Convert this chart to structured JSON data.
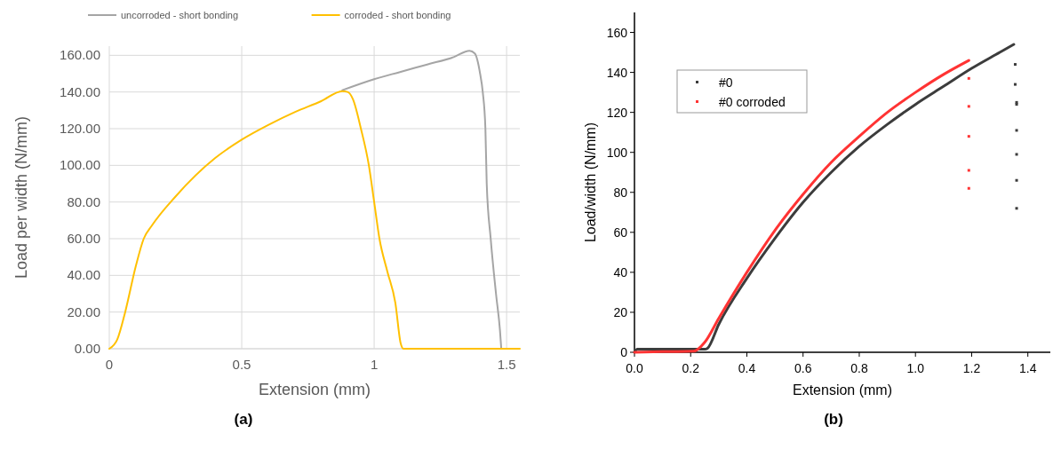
{
  "chart_data": [
    {
      "type": "line",
      "xlabel": "Extension (mm)",
      "ylabel": "Load per width (N/mm)",
      "annotations": [
        "(a)"
      ],
      "xlim": [
        0,
        1.55
      ],
      "xticks": [
        0,
        0.5,
        1,
        1.5
      ],
      "ylim": [
        0,
        165
      ],
      "yticks": [
        {
          "value": 0,
          "label": "0.00"
        },
        {
          "value": 20,
          "label": "20.00"
        },
        {
          "value": 40,
          "label": "40.00"
        },
        {
          "value": 60,
          "label": "60.00"
        },
        {
          "value": 80,
          "label": "80.00"
        },
        {
          "value": 100,
          "label": "100.00"
        },
        {
          "value": 120,
          "label": "120.00"
        },
        {
          "value": 140,
          "label": "140.00"
        },
        {
          "value": 160,
          "label": "160.00"
        }
      ],
      "grid": true,
      "legend": "top",
      "line_style": "solid",
      "series": [
        {
          "name": "uncorroded - short bonding",
          "color": "#a5a5a5",
          "x": [
            0.88,
            1.0,
            1.1,
            1.2,
            1.3,
            1.36,
            1.38,
            1.4,
            1.41,
            1.42,
            1.425,
            1.44,
            1.46,
            1.475,
            1.48
          ],
          "values": [
            141,
            147,
            151,
            155,
            159,
            162.5,
            161,
            150,
            140,
            120,
            90,
            60,
            30,
            10,
            0
          ]
        },
        {
          "name": "corroded - short bonding",
          "color": "#ffc000",
          "x": [
            0,
            0.03,
            0.06,
            0.1,
            0.13,
            0.16,
            0.25,
            0.4,
            0.5,
            0.6,
            0.7,
            0.8,
            0.88,
            0.9,
            0.92,
            0.95,
            0.98,
            1.0,
            1.02,
            1.05,
            1.08,
            1.1,
            1.11,
            1.55
          ],
          "values": [
            0,
            5,
            20,
            45,
            60,
            67,
            83,
            104,
            114,
            122,
            129,
            135,
            140.5,
            140,
            136,
            120,
            100,
            80,
            60,
            42,
            25,
            3,
            0,
            0
          ]
        }
      ]
    },
    {
      "type": "line",
      "xlabel": "Extension (mm)",
      "ylabel": "Load/width (N/mm)",
      "annotations": [
        "(b)"
      ],
      "xlim": [
        0,
        1.48
      ],
      "xticks": [
        {
          "value": 0,
          "label": "0.0"
        },
        {
          "value": 0.2,
          "label": "0.2"
        },
        {
          "value": 0.4,
          "label": "0.4"
        },
        {
          "value": 0.6,
          "label": "0.6"
        },
        {
          "value": 0.8,
          "label": "0.8"
        },
        {
          "value": 1,
          "label": "1.0"
        },
        {
          "value": 1.2,
          "label": "1.2"
        },
        {
          "value": 1.4,
          "label": "1.4"
        }
      ],
      "ylim": [
        0,
        170
      ],
      "yticks": [
        0,
        20,
        40,
        60,
        80,
        100,
        120,
        140,
        160
      ],
      "grid": false,
      "legend": "top left",
      "line_style": "solid",
      "series": [
        {
          "name": "#0",
          "color": "#3c3c3c",
          "x": [
            0,
            0.01,
            0.1,
            0.2,
            0.25,
            0.26,
            0.3,
            0.4,
            0.5,
            0.6,
            0.7,
            0.8,
            0.9,
            1.0,
            1.1,
            1.2,
            1.3,
            1.35
          ],
          "values": [
            0,
            1.5,
            1.5,
            1.5,
            1.5,
            2,
            14,
            37,
            57,
            75,
            90,
            103,
            114,
            124,
            133,
            142,
            150,
            154
          ]
        },
        {
          "name": "#0 corroded",
          "color": "#ff3333",
          "x": [
            0,
            0.1,
            0.21,
            0.25,
            0.3,
            0.4,
            0.5,
            0.6,
            0.7,
            0.8,
            0.9,
            1.0,
            1.1,
            1.19
          ],
          "values": [
            0,
            0.3,
            0.5,
            5,
            17,
            40,
            61,
            79,
            95,
            108,
            120,
            130,
            139,
            146
          ]
        },
        {
          "type": "scatter",
          "color": "#3c3c3c",
          "marker": "square",
          "x": [
            1.355,
            1.355,
            1.36,
            1.36,
            1.36,
            1.36,
            1.36,
            1.36
          ],
          "values": [
            144,
            134,
            125,
            124,
            111,
            99,
            86,
            72
          ]
        },
        {
          "type": "scatter",
          "color": "#ff3333",
          "marker": "square",
          "x": [
            1.19,
            1.19,
            1.19,
            1.19,
            1.19
          ],
          "values": [
            137,
            123,
            108,
            91,
            82
          ]
        }
      ]
    }
  ]
}
